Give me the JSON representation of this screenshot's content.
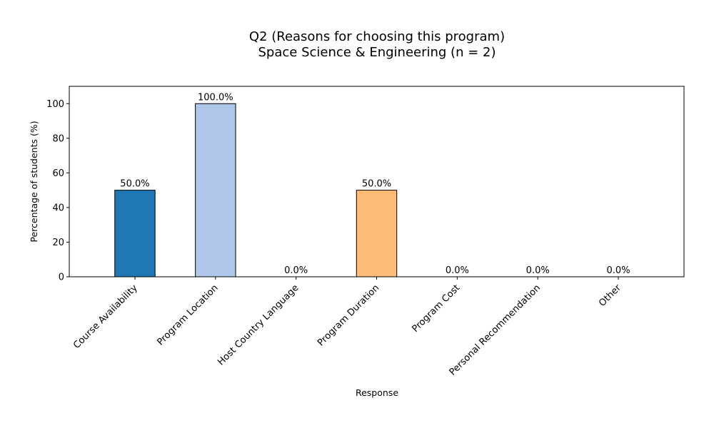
{
  "chart_data": {
    "type": "bar",
    "title": "Q2 (Reasons for choosing this program)",
    "subtitle": "Space Science & Engineering (n = 2)",
    "xlabel": "Response",
    "ylabel": "Percentage of students (%)",
    "ylim": [
      0,
      110
    ],
    "yticks": [
      0,
      20,
      40,
      60,
      80,
      100
    ],
    "categories": [
      "Course Availability",
      "Program Location",
      "Host Country Language",
      "Program Duration",
      "Program Cost",
      "Personal Recommendation",
      "Other"
    ],
    "values": [
      50.0,
      100.0,
      0.0,
      50.0,
      0.0,
      0.0,
      0.0
    ],
    "value_labels": [
      "50.0%",
      "100.0%",
      "0.0%",
      "50.0%",
      "0.0%",
      "0.0%",
      "0.0%"
    ],
    "colors": [
      "#1f77b4",
      "#aec7e8",
      "#ff7f0e",
      "#ffbb78",
      "#2ca02c",
      "#98df8a",
      "#d62728"
    ],
    "bar_edge_color": "#000000",
    "grid": false,
    "legend": "none"
  }
}
